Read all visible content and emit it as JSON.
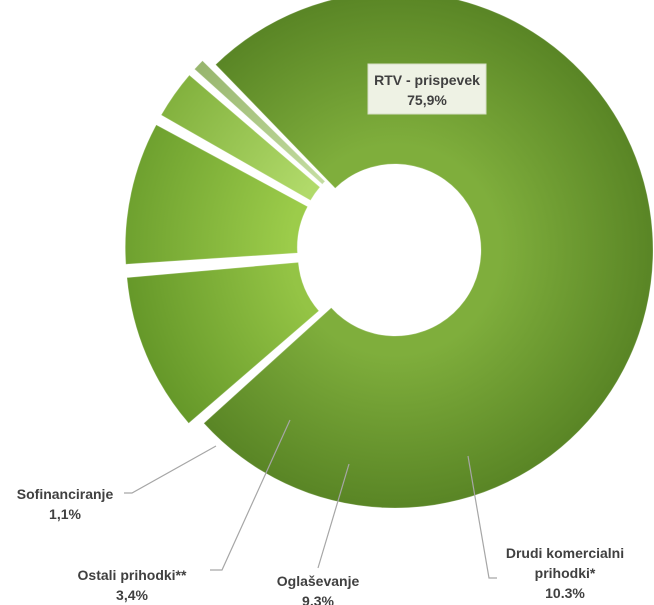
{
  "chart_data": {
    "type": "pie",
    "donut": true,
    "exploded": true,
    "categories": [
      "RTV - prispevek",
      "Drudi komercialni prihodki*",
      "Oglaševanje",
      "Ostali prihodki**",
      "Sofinanciranje"
    ],
    "values": [
      75.9,
      10.3,
      9.3,
      3.4,
      1.1
    ],
    "labels": [
      {
        "line1": "RTV - prispevek",
        "line2": "",
        "value": "75,9%"
      },
      {
        "line1": "Drudi komercialni",
        "line2": "prihodki*",
        "value": "10.3%"
      },
      {
        "line1": "Oglaševanje",
        "line2": "",
        "value": "9.3%"
      },
      {
        "line1": "Ostali prihodki**",
        "line2": "",
        "value": "3,4%"
      },
      {
        "line1": "Sofinanciranje",
        "line2": "",
        "value": "1,1%"
      }
    ],
    "colors": [
      "#6a9a2e",
      "#7cb032",
      "#8abd3a",
      "#9ccd4e",
      "#a6c47e"
    ],
    "legend": "none"
  }
}
